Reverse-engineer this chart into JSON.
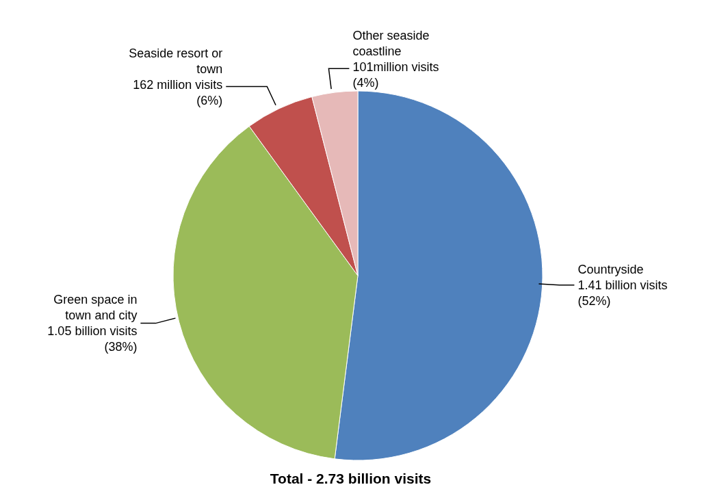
{
  "chart_data": {
    "type": "pie",
    "title": "Total - 2.73 billion visits",
    "categories": [
      "Countryside",
      "Green space in\ntown and city",
      "Seaside resort or\ntown",
      "Other seaside\ncoastline"
    ],
    "values": [
      52,
      38,
      6,
      4
    ],
    "value_labels": [
      "1.41 billion visits\n(52%)",
      "1.05 billion visits\n(38%)",
      "162 million visits\n(6%)",
      "101million visits\n(4%)"
    ],
    "colors": [
      "#4f81bd",
      "#9bbb59",
      "#c0504d",
      "#e6b9b8"
    ]
  }
}
